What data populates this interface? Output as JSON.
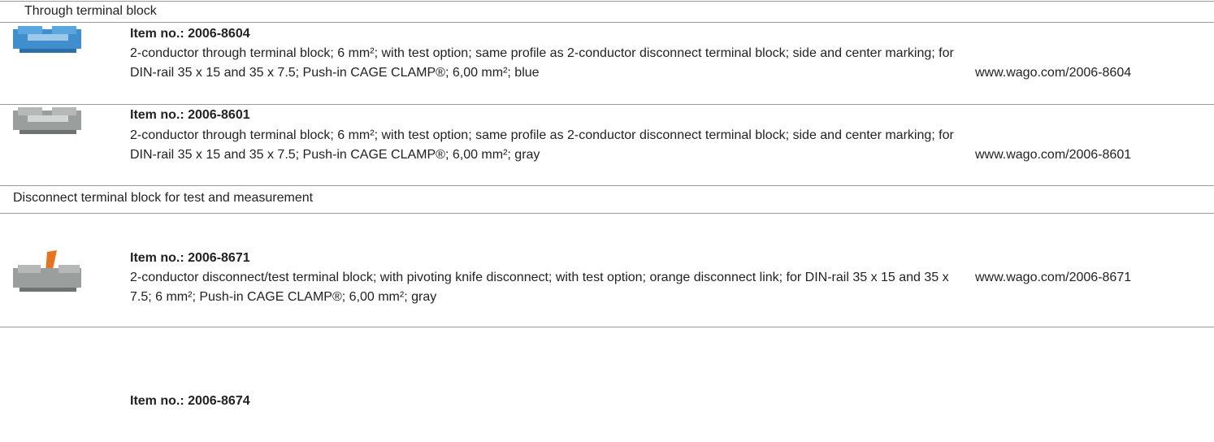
{
  "sections": [
    {
      "title": "Through terminal block",
      "items": [
        {
          "item_no": "Item no.: 2006-8604",
          "description": "2-conductor through terminal block; 6 mm²; with test option; same profile as 2-conductor disconnect terminal block; side and center marking; for DIN-rail 35 x 15 and 35 x 7.5; Push-in CAGE CLAMP®; 6,00 mm²; blue",
          "url": "www.wago.com/2006-8604"
        },
        {
          "item_no": "Item no.: 2006-8601",
          "description": "2-conductor through terminal block; 6 mm²; with test option; same profile as 2-conductor disconnect terminal block; side and center marking; for DIN-rail 35 x 15 and 35 x 7.5; Push-in CAGE CLAMP®; 6,00 mm²; gray",
          "url": "www.wago.com/2006-8601"
        }
      ]
    },
    {
      "title": "Disconnect terminal block for test and measurement",
      "items": [
        {
          "item_no": "Item no.: 2006-8671",
          "description": "2-conductor disconnect/test terminal block; with pivoting knife disconnect; with test option; orange disconnect link; for DIN-rail 35 x 15 and 35 x 7.5; 6 mm²; Push-in CAGE CLAMP®; 6,00 mm²; gray",
          "url": "www.wago.com/2006-8671"
        },
        {
          "item_no": "Item no.: 2006-8674"
        }
      ]
    }
  ]
}
